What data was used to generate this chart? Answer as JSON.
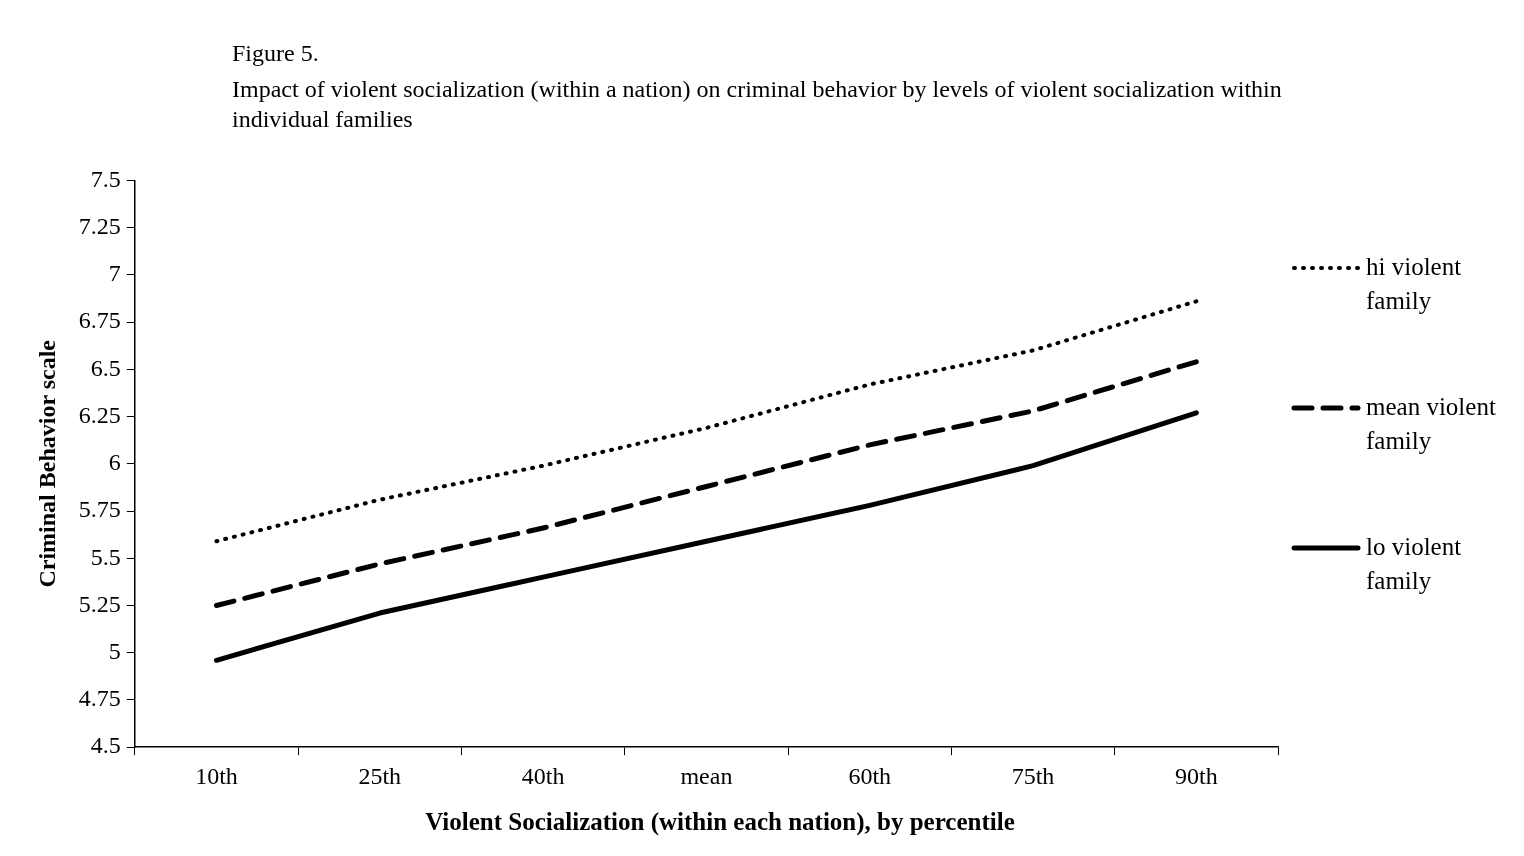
{
  "chart_data": {
    "type": "line",
    "title": "Figure 5.",
    "subtitle": "Impact of violent socialization (within a nation) on criminal behavior by levels of violent socialization within individual families",
    "xlabel": "Violent Socialization (within each nation), by percentile",
    "ylabel": "Criminal Behavior scale",
    "categories": [
      "10th",
      "25th",
      "40th",
      "mean",
      "60th",
      "75th",
      "90th"
    ],
    "series": [
      {
        "name": "hi violent family",
        "color": "#000000",
        "line_style": "dotted",
        "values": [
          5.59,
          5.81,
          5.99,
          6.19,
          6.42,
          6.6,
          6.86
        ]
      },
      {
        "name": "mean violent family",
        "color": "#000000",
        "line_style": "dashed",
        "values": [
          5.25,
          5.47,
          5.66,
          5.88,
          6.1,
          6.28,
          6.54
        ]
      },
      {
        "name": "lo violent family",
        "color": "#000000",
        "line_style": "solid",
        "values": [
          4.96,
          5.21,
          5.4,
          5.59,
          5.78,
          5.99,
          6.27
        ]
      }
    ],
    "ylim": [
      4.5,
      7.5
    ],
    "yticks": [
      4.5,
      4.75,
      5,
      5.25,
      5.5,
      5.75,
      6,
      6.25,
      6.5,
      6.75,
      7,
      7.25,
      7.5
    ],
    "grid": false,
    "legend": "right",
    "marker": "none"
  }
}
